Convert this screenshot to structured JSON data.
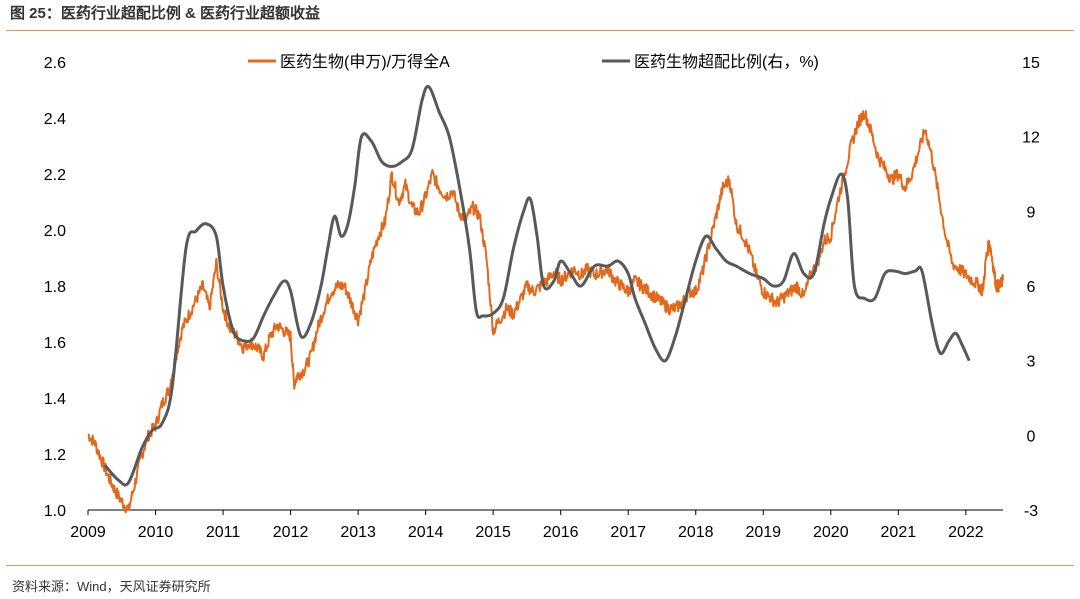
{
  "figure_title": "图 25：医药行业超配比例 & 医药行业超额收益",
  "source_note": "资料来源：Wind，天风证券研究所",
  "colors": {
    "primary_series": "#E2691C",
    "secondary_series": "#595959",
    "rule": "#E8955A"
  },
  "chart_data": {
    "type": "line",
    "title": "",
    "grid": false,
    "legend_position": "top",
    "x_ticks": [
      "2009",
      "2010",
      "2011",
      "2012",
      "2013",
      "2014",
      "2015",
      "2016",
      "2017",
      "2018",
      "2019",
      "2020",
      "2021",
      "2022"
    ],
    "xlim": [
      2009.0,
      2022.55
    ],
    "y_left": {
      "lim": [
        1.0,
        2.6
      ],
      "ticks": [
        "1.0",
        "1.2",
        "1.4",
        "1.6",
        "1.8",
        "2.0",
        "2.2",
        "2.4",
        "2.6"
      ]
    },
    "y_right": {
      "lim": [
        -3,
        15
      ],
      "ticks": [
        "-3",
        "0",
        "3",
        "6",
        "9",
        "12",
        "15"
      ]
    },
    "series": [
      {
        "name": "医药生物(申万)/万得全A",
        "axis": "left",
        "points": [
          [
            2009.0,
            1.27
          ],
          [
            2009.1,
            1.24
          ],
          [
            2009.2,
            1.18
          ],
          [
            2009.3,
            1.12
          ],
          [
            2009.4,
            1.07
          ],
          [
            2009.5,
            1.03
          ],
          [
            2009.6,
            1.0
          ],
          [
            2009.7,
            1.1
          ],
          [
            2009.8,
            1.2
          ],
          [
            2009.9,
            1.27
          ],
          [
            2010.0,
            1.3
          ],
          [
            2010.1,
            1.38
          ],
          [
            2010.2,
            1.43
          ],
          [
            2010.3,
            1.55
          ],
          [
            2010.4,
            1.65
          ],
          [
            2010.5,
            1.7
          ],
          [
            2010.6,
            1.75
          ],
          [
            2010.7,
            1.8
          ],
          [
            2010.8,
            1.72
          ],
          [
            2010.9,
            1.88
          ],
          [
            2011.0,
            1.72
          ],
          [
            2011.1,
            1.65
          ],
          [
            2011.2,
            1.62
          ],
          [
            2011.3,
            1.58
          ],
          [
            2011.4,
            1.6
          ],
          [
            2011.5,
            1.58
          ],
          [
            2011.6,
            1.55
          ],
          [
            2011.7,
            1.62
          ],
          [
            2011.8,
            1.66
          ],
          [
            2011.9,
            1.64
          ],
          [
            2012.0,
            1.62
          ],
          [
            2012.05,
            1.45
          ],
          [
            2012.1,
            1.48
          ],
          [
            2012.2,
            1.5
          ],
          [
            2012.3,
            1.55
          ],
          [
            2012.4,
            1.65
          ],
          [
            2012.5,
            1.72
          ],
          [
            2012.6,
            1.78
          ],
          [
            2012.7,
            1.8
          ],
          [
            2012.8,
            1.8
          ],
          [
            2012.9,
            1.74
          ],
          [
            2013.0,
            1.68
          ],
          [
            2013.1,
            1.78
          ],
          [
            2013.2,
            1.9
          ],
          [
            2013.3,
            1.98
          ],
          [
            2013.4,
            2.03
          ],
          [
            2013.5,
            2.2
          ],
          [
            2013.6,
            2.1
          ],
          [
            2013.7,
            2.16
          ],
          [
            2013.8,
            2.08
          ],
          [
            2013.9,
            2.06
          ],
          [
            2014.0,
            2.12
          ],
          [
            2014.1,
            2.2
          ],
          [
            2014.2,
            2.15
          ],
          [
            2014.3,
            2.12
          ],
          [
            2014.4,
            2.14
          ],
          [
            2014.5,
            2.06
          ],
          [
            2014.6,
            2.04
          ],
          [
            2014.7,
            2.08
          ],
          [
            2014.8,
            2.05
          ],
          [
            2014.9,
            1.9
          ],
          [
            2015.0,
            1.64
          ],
          [
            2015.1,
            1.68
          ],
          [
            2015.2,
            1.72
          ],
          [
            2015.3,
            1.7
          ],
          [
            2015.4,
            1.75
          ],
          [
            2015.5,
            1.8
          ],
          [
            2015.6,
            1.78
          ],
          [
            2015.7,
            1.8
          ],
          [
            2015.8,
            1.82
          ],
          [
            2015.9,
            1.85
          ],
          [
            2016.0,
            1.82
          ],
          [
            2016.1,
            1.84
          ],
          [
            2016.2,
            1.86
          ],
          [
            2016.3,
            1.84
          ],
          [
            2016.4,
            1.86
          ],
          [
            2016.5,
            1.84
          ],
          [
            2016.6,
            1.85
          ],
          [
            2016.7,
            1.86
          ],
          [
            2016.8,
            1.82
          ],
          [
            2016.9,
            1.8
          ],
          [
            2017.0,
            1.78
          ],
          [
            2017.1,
            1.82
          ],
          [
            2017.2,
            1.8
          ],
          [
            2017.3,
            1.78
          ],
          [
            2017.4,
            1.76
          ],
          [
            2017.5,
            1.74
          ],
          [
            2017.6,
            1.72
          ],
          [
            2017.7,
            1.72
          ],
          [
            2017.8,
            1.74
          ],
          [
            2017.9,
            1.78
          ],
          [
            2018.0,
            1.78
          ],
          [
            2018.1,
            1.85
          ],
          [
            2018.2,
            1.95
          ],
          [
            2018.3,
            2.05
          ],
          [
            2018.4,
            2.15
          ],
          [
            2018.5,
            2.18
          ],
          [
            2018.6,
            2.02
          ],
          [
            2018.7,
            1.98
          ],
          [
            2018.8,
            1.92
          ],
          [
            2018.9,
            1.84
          ],
          [
            2019.0,
            1.78
          ],
          [
            2019.1,
            1.76
          ],
          [
            2019.2,
            1.74
          ],
          [
            2019.3,
            1.76
          ],
          [
            2019.4,
            1.78
          ],
          [
            2019.5,
            1.8
          ],
          [
            2019.6,
            1.76
          ],
          [
            2019.7,
            1.84
          ],
          [
            2019.8,
            1.88
          ],
          [
            2019.9,
            1.96
          ],
          [
            2020.0,
            1.98
          ],
          [
            2020.1,
            2.1
          ],
          [
            2020.2,
            2.2
          ],
          [
            2020.3,
            2.3
          ],
          [
            2020.4,
            2.38
          ],
          [
            2020.5,
            2.42
          ],
          [
            2020.6,
            2.35
          ],
          [
            2020.7,
            2.26
          ],
          [
            2020.8,
            2.22
          ],
          [
            2020.9,
            2.18
          ],
          [
            2021.0,
            2.2
          ],
          [
            2021.1,
            2.15
          ],
          [
            2021.2,
            2.2
          ],
          [
            2021.3,
            2.28
          ],
          [
            2021.4,
            2.36
          ],
          [
            2021.5,
            2.26
          ],
          [
            2021.6,
            2.12
          ],
          [
            2021.7,
            1.98
          ],
          [
            2021.8,
            1.88
          ],
          [
            2021.9,
            1.86
          ],
          [
            2022.0,
            1.84
          ],
          [
            2022.1,
            1.82
          ],
          [
            2022.2,
            1.8
          ],
          [
            2022.25,
            1.78
          ],
          [
            2022.3,
            1.9
          ],
          [
            2022.35,
            1.96
          ],
          [
            2022.4,
            1.88
          ],
          [
            2022.45,
            1.8
          ],
          [
            2022.5,
            1.8
          ],
          [
            2022.55,
            1.82
          ]
        ]
      },
      {
        "name": "医药生物超配比例(右，%)",
        "axis": "right",
        "points": [
          [
            2009.25,
            -1.2
          ],
          [
            2009.45,
            -1.8
          ],
          [
            2009.6,
            -1.9
          ],
          [
            2009.8,
            -0.5
          ],
          [
            2009.95,
            0.2
          ],
          [
            2010.1,
            0.5
          ],
          [
            2010.25,
            2.0
          ],
          [
            2010.45,
            7.5
          ],
          [
            2010.6,
            8.2
          ],
          [
            2010.75,
            8.5
          ],
          [
            2010.9,
            8.0
          ],
          [
            2011.0,
            6.0
          ],
          [
            2011.15,
            4.2
          ],
          [
            2011.3,
            3.8
          ],
          [
            2011.45,
            3.9
          ],
          [
            2011.6,
            4.8
          ],
          [
            2011.75,
            5.6
          ],
          [
            2011.9,
            6.2
          ],
          [
            2012.0,
            5.8
          ],
          [
            2012.15,
            4.0
          ],
          [
            2012.3,
            4.5
          ],
          [
            2012.45,
            6.0
          ],
          [
            2012.55,
            7.5
          ],
          [
            2012.65,
            8.8
          ],
          [
            2012.75,
            8.0
          ],
          [
            2012.85,
            8.5
          ],
          [
            2012.95,
            10.0
          ],
          [
            2013.05,
            12.0
          ],
          [
            2013.2,
            11.8
          ],
          [
            2013.35,
            11.0
          ],
          [
            2013.5,
            10.8
          ],
          [
            2013.65,
            11.0
          ],
          [
            2013.8,
            11.5
          ],
          [
            2013.95,
            13.5
          ],
          [
            2014.05,
            14.0
          ],
          [
            2014.2,
            13.0
          ],
          [
            2014.35,
            12.0
          ],
          [
            2014.5,
            10.0
          ],
          [
            2014.65,
            7.5
          ],
          [
            2014.75,
            5.0
          ],
          [
            2014.85,
            4.8
          ],
          [
            2015.0,
            4.9
          ],
          [
            2015.15,
            5.5
          ],
          [
            2015.3,
            7.5
          ],
          [
            2015.45,
            9.0
          ],
          [
            2015.55,
            9.5
          ],
          [
            2015.65,
            8.0
          ],
          [
            2015.75,
            6.0
          ],
          [
            2015.9,
            6.2
          ],
          [
            2016.0,
            7.0
          ],
          [
            2016.15,
            6.5
          ],
          [
            2016.3,
            6.0
          ],
          [
            2016.5,
            6.8
          ],
          [
            2016.7,
            6.8
          ],
          [
            2016.85,
            7.0
          ],
          [
            2017.0,
            6.5
          ],
          [
            2017.1,
            5.5
          ],
          [
            2017.25,
            4.5
          ],
          [
            2017.4,
            3.5
          ],
          [
            2017.55,
            3.0
          ],
          [
            2017.7,
            4.0
          ],
          [
            2017.85,
            5.5
          ],
          [
            2018.0,
            7.0
          ],
          [
            2018.15,
            8.0
          ],
          [
            2018.3,
            7.5
          ],
          [
            2018.45,
            7.0
          ],
          [
            2018.6,
            6.8
          ],
          [
            2018.8,
            6.5
          ],
          [
            2019.0,
            6.3
          ],
          [
            2019.15,
            6.0
          ],
          [
            2019.3,
            6.2
          ],
          [
            2019.45,
            7.3
          ],
          [
            2019.6,
            6.5
          ],
          [
            2019.75,
            6.5
          ],
          [
            2019.9,
            8.5
          ],
          [
            2020.0,
            9.5
          ],
          [
            2020.15,
            10.5
          ],
          [
            2020.25,
            9.5
          ],
          [
            2020.35,
            6.0
          ],
          [
            2020.5,
            5.5
          ],
          [
            2020.65,
            5.5
          ],
          [
            2020.8,
            6.5
          ],
          [
            2020.95,
            6.6
          ],
          [
            2021.1,
            6.5
          ],
          [
            2021.25,
            6.6
          ],
          [
            2021.35,
            6.6
          ],
          [
            2021.5,
            4.5
          ],
          [
            2021.62,
            3.3
          ],
          [
            2021.75,
            3.8
          ],
          [
            2021.85,
            4.1
          ],
          [
            2021.95,
            3.6
          ],
          [
            2022.05,
            3.0
          ]
        ]
      }
    ]
  }
}
